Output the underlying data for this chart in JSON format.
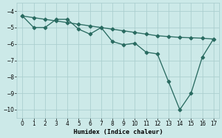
{
  "line1_x": [
    0,
    1,
    2,
    3,
    4,
    5,
    6,
    7,
    8,
    9,
    10,
    11,
    12,
    13,
    14,
    15,
    16,
    17
  ],
  "line1_y": [
    -4.3,
    -4.4,
    -4.5,
    -4.6,
    -4.7,
    -4.8,
    -4.9,
    -5.0,
    -5.1,
    -5.2,
    -5.3,
    -5.4,
    -5.5,
    -5.55,
    -5.6,
    -5.62,
    -5.65,
    -5.7
  ],
  "line2_x": [
    0,
    1,
    2,
    3,
    4,
    5,
    6,
    7,
    8,
    9,
    10,
    11,
    12,
    13,
    14,
    15,
    16,
    17
  ],
  "line2_y": [
    -4.3,
    -5.0,
    -5.0,
    -4.5,
    -4.5,
    -5.1,
    -5.4,
    -5.0,
    -5.85,
    -6.05,
    -5.95,
    -6.5,
    -6.6,
    -8.3,
    -10.0,
    -9.0,
    -6.8,
    -5.7
  ],
  "color": "#2a6b61",
  "bg_color": "#cce9e8",
  "grid_color": "#aacece",
  "xlabel": "Humidex (Indice chaleur)",
  "ylim": [
    -10.5,
    -3.5
  ],
  "xlim": [
    -0.5,
    17.5
  ],
  "yticks": [
    -10,
    -9,
    -8,
    -7,
    -6,
    -5,
    -4
  ],
  "xticks": [
    0,
    1,
    2,
    3,
    4,
    5,
    6,
    7,
    8,
    9,
    10,
    11,
    12,
    13,
    14,
    15,
    16,
    17
  ],
  "marker": "D",
  "marker_size": 2.5,
  "line_width": 1.0
}
